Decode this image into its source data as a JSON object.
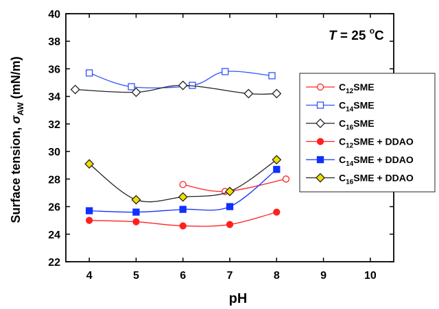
{
  "chart_data": {
    "type": "line",
    "xlabel": "pH",
    "ylabel": "Surface tension, σ_AW (mN/m)",
    "ylabel_parts": {
      "main": "Surface tension, ",
      "sym": "σ",
      "sub": "AW",
      "unit": " (mN/m)"
    },
    "annotation": {
      "var": "T",
      "rest": " = 25 ",
      "deg": "o",
      "unit": "C"
    },
    "xlim": [
      3.5,
      10.5
    ],
    "ylim": [
      22,
      40
    ],
    "xticks": [
      "4",
      "5",
      "6",
      "7",
      "8",
      "9",
      "10"
    ],
    "yticks": [
      "22",
      "24",
      "26",
      "28",
      "30",
      "32",
      "34",
      "36",
      "38",
      "40"
    ],
    "grid": false,
    "legend_position": "right",
    "series": [
      {
        "name": "C12SME",
        "label": {
          "pre": "C",
          "sub": "12",
          "post": "SME"
        },
        "color": "#ff2020",
        "marker": "circle",
        "filled": false,
        "x": [
          6.0,
          6.9,
          8.2
        ],
        "y": [
          27.6,
          27.1,
          28.0
        ]
      },
      {
        "name": "C14SME",
        "label": {
          "pre": "C",
          "sub": "14",
          "post": "SME"
        },
        "color": "#3050ff",
        "marker": "square",
        "filled": false,
        "x": [
          4.0,
          4.9,
          6.2,
          6.9,
          7.9
        ],
        "y": [
          35.7,
          34.7,
          34.8,
          35.8,
          35.5
        ]
      },
      {
        "name": "C16SME",
        "label": {
          "pre": "C",
          "sub": "16",
          "post": "SME"
        },
        "color": "#222222",
        "marker": "diamond",
        "filled": false,
        "x": [
          3.7,
          5.0,
          6.0,
          7.4,
          8.0
        ],
        "y": [
          34.5,
          34.3,
          34.8,
          34.2,
          34.2
        ]
      },
      {
        "name": "C12SME + DDAO",
        "label": {
          "pre": "C",
          "sub": "12",
          "post": "SME + DDAO"
        },
        "color": "#ff2020",
        "marker": "circle",
        "filled": true,
        "fill": "#ff2020",
        "x": [
          4.0,
          5.0,
          6.0,
          7.0,
          8.0
        ],
        "y": [
          25.0,
          24.9,
          24.6,
          24.7,
          25.6
        ]
      },
      {
        "name": "C14SME + DDAO",
        "label": {
          "pre": "C",
          "sub": "14",
          "post": "SME + DDAO"
        },
        "color": "#1030ff",
        "marker": "square",
        "filled": true,
        "fill": "#1030ff",
        "x": [
          4.0,
          5.0,
          6.0,
          7.0,
          8.0
        ],
        "y": [
          25.7,
          25.6,
          25.8,
          26.0,
          28.7
        ]
      },
      {
        "name": "C16SME + DDAO",
        "label": {
          "pre": "C",
          "sub": "16",
          "post": "SME + DDAO"
        },
        "color": "#222222",
        "marker": "diamond",
        "filled": true,
        "fill": "#f0e000",
        "x": [
          4.0,
          5.0,
          6.0,
          7.0,
          8.0
        ],
        "y": [
          29.1,
          26.5,
          26.7,
          27.1,
          29.4
        ]
      }
    ]
  }
}
